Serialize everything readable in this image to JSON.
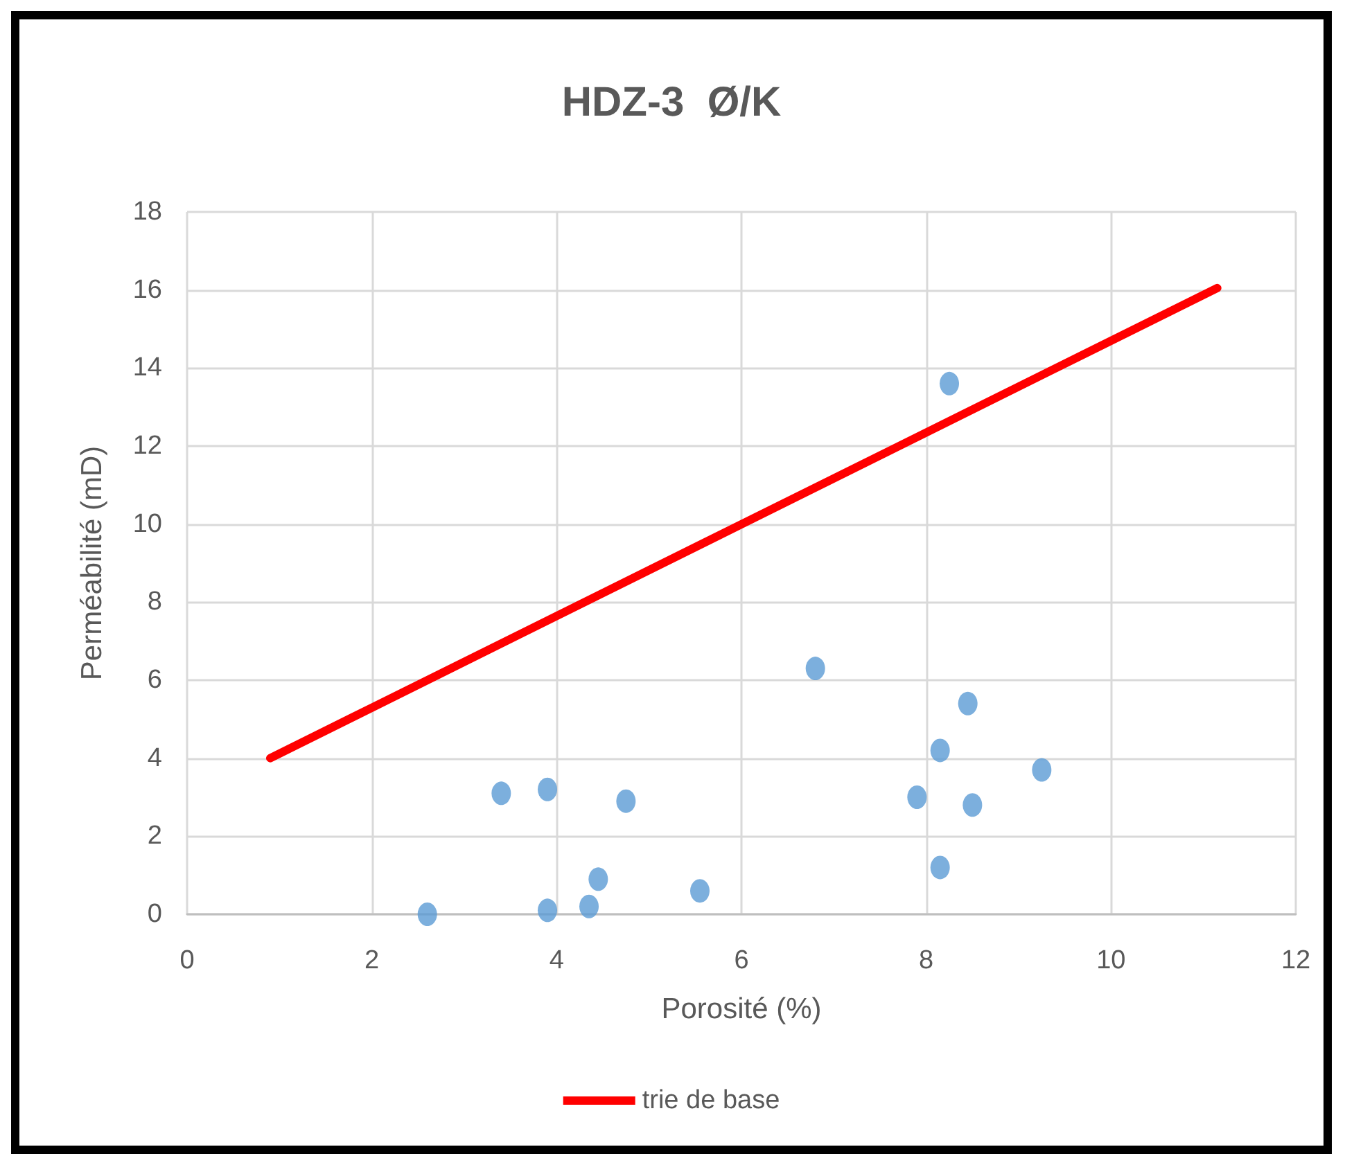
{
  "chart_data": {
    "type": "scatter",
    "title": "HDZ-3  Ø/K",
    "xlabel": "Porosité (%)",
    "ylabel": "Perméabilité (mD)",
    "series": [
      {
        "color": "#5b9bd5",
        "marker": "circle",
        "x": [
          2.6,
          3.4,
          3.9,
          3.9,
          4.35,
          4.45,
          4.75,
          5.55,
          6.8,
          7.9,
          8.15,
          8.15,
          8.25,
          8.45,
          8.5,
          9.25
        ],
        "values": [
          0,
          3.1,
          3.2,
          0.1,
          0.2,
          0.9,
          2.9,
          0.6,
          6.3,
          3.0,
          4.2,
          1.2,
          13.6,
          5.4,
          2.8,
          3.7
        ]
      },
      {
        "type": "line",
        "name": "trie de base",
        "color": "#ff0000",
        "x": [
          0.9,
          11.15
        ],
        "values": [
          4.0,
          16.05
        ],
        "marker": "none"
      }
    ],
    "xlim": [
      0,
      12
    ],
    "xticks": [
      0,
      2,
      4,
      6,
      8,
      10,
      12
    ],
    "ylim": [
      0,
      18
    ],
    "yticks": [
      0,
      2,
      4,
      6,
      8,
      10,
      12,
      14,
      16,
      18
    ],
    "grid": true,
    "legend": "bottom"
  }
}
